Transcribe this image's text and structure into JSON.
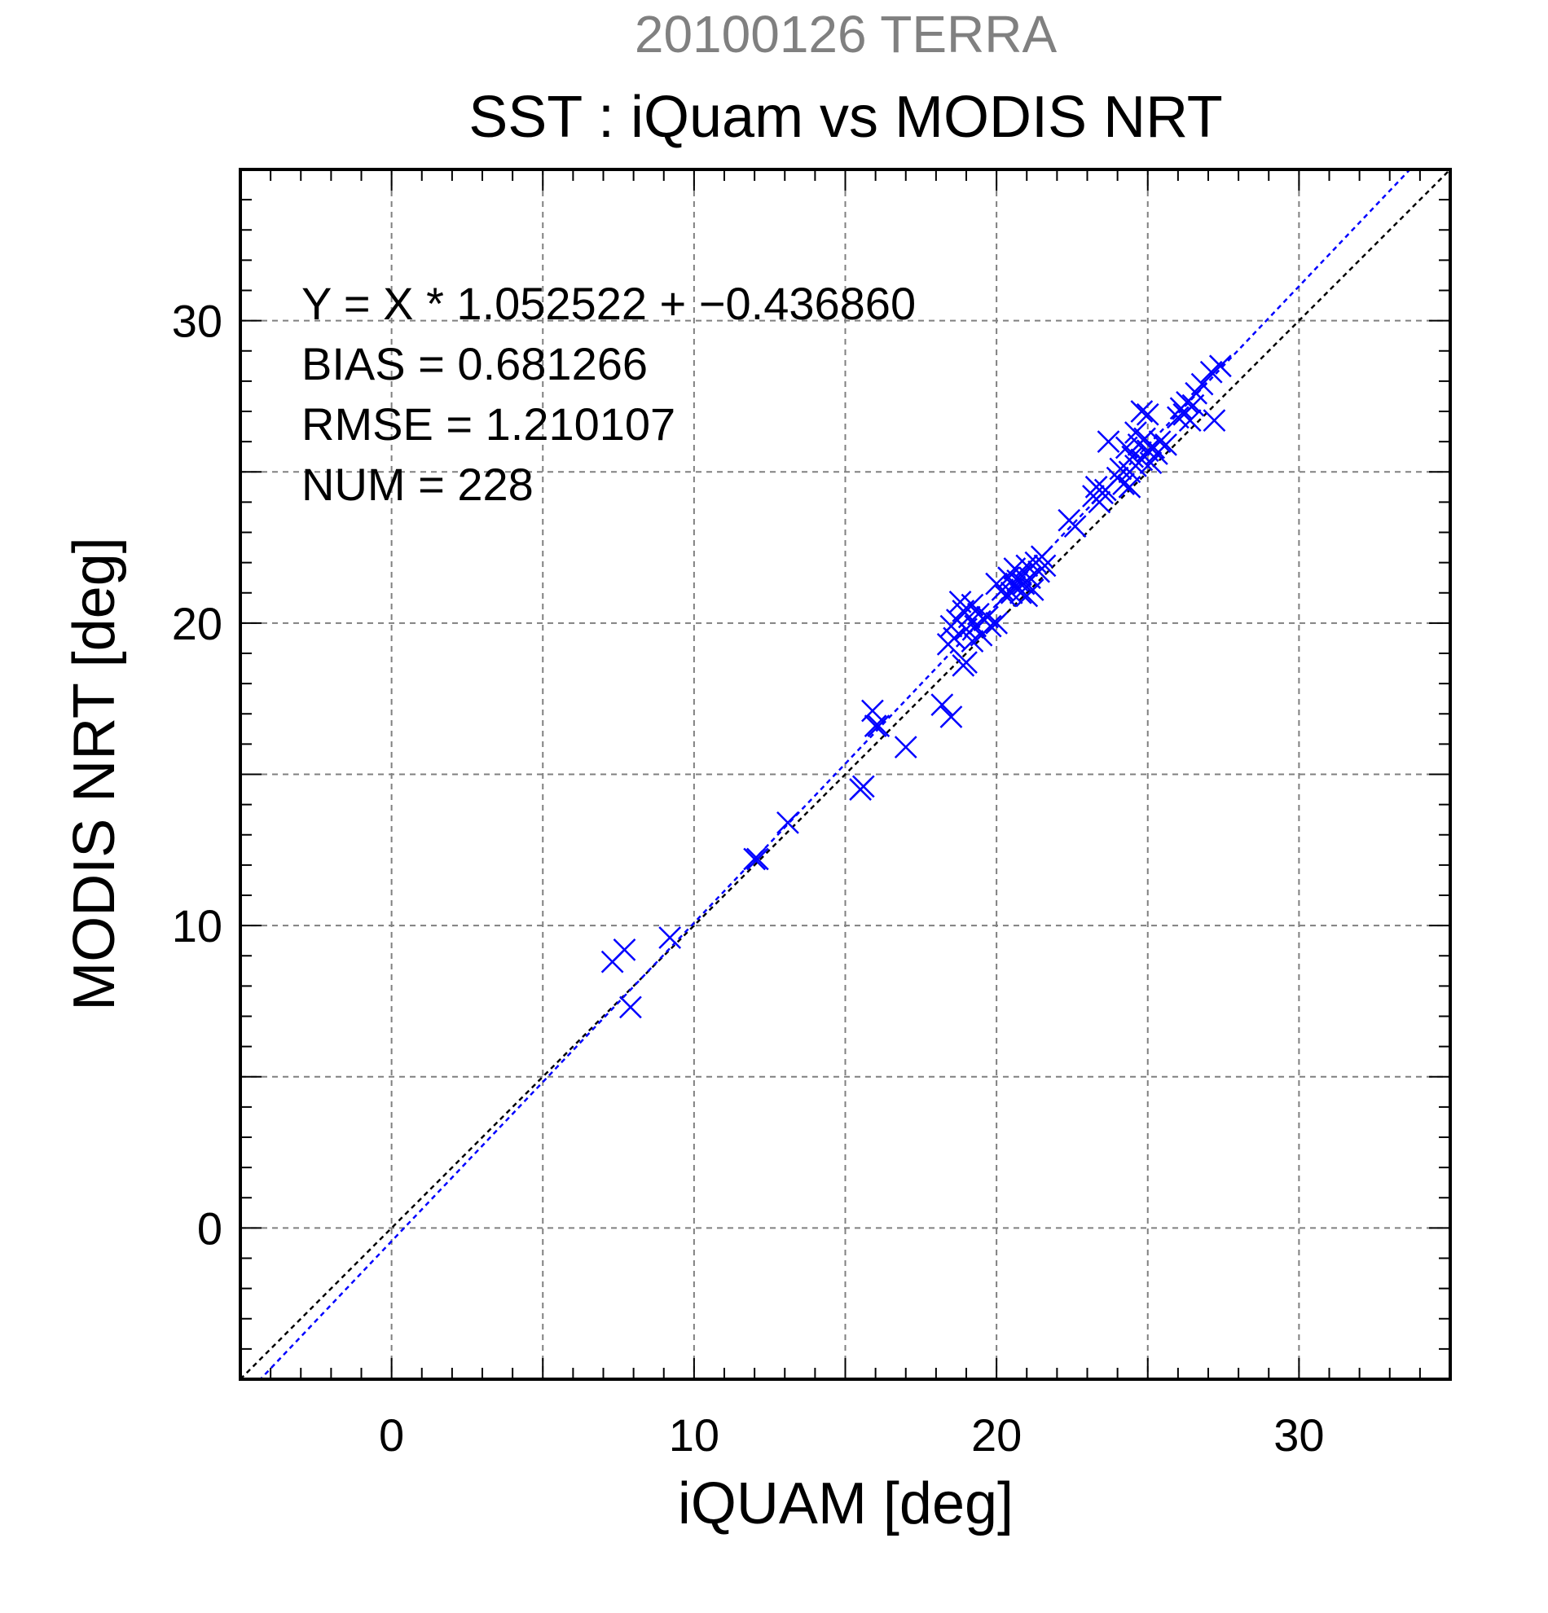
{
  "chart_data": {
    "type": "scatter",
    "title_top": "20100126 TERRA",
    "title": "SST : iQuam vs MODIS NRT",
    "xlabel": "iQUAM [deg]",
    "ylabel": "MODIS NRT [deg]",
    "xlim": [
      -5,
      35
    ],
    "ylim": [
      -5,
      35
    ],
    "x_ticks": [
      0,
      10,
      20,
      30
    ],
    "y_ticks": [
      0,
      10,
      20,
      30
    ],
    "grid": true,
    "stats": [
      "Y = X * 1.052522 + −0.436860",
      "BIAS = 0.681266",
      "RMSE = 1.210107",
      "NUM = 228"
    ],
    "fit": {
      "slope": 1.052522,
      "intercept": -0.43686
    },
    "colors": {
      "points": "#0000ff",
      "fit_line": "#0000ff",
      "identity_line": "#000000",
      "grid": "#808080",
      "title_top": "#808080"
    },
    "points": [
      [
        7.3,
        8.8
      ],
      [
        7.7,
        9.2
      ],
      [
        7.9,
        7.3
      ],
      [
        9.2,
        9.6
      ],
      [
        12.0,
        12.2
      ],
      [
        12.1,
        12.2
      ],
      [
        13.1,
        13.4
      ],
      [
        15.5,
        14.5
      ],
      [
        15.6,
        14.6
      ],
      [
        15.9,
        17.1
      ],
      [
        16.0,
        16.6
      ],
      [
        16.1,
        16.6
      ],
      [
        17.0,
        15.9
      ],
      [
        18.2,
        17.3
      ],
      [
        18.5,
        16.9
      ],
      [
        18.4,
        19.3
      ],
      [
        18.5,
        19.9
      ],
      [
        18.6,
        19.5
      ],
      [
        18.7,
        20.1
      ],
      [
        18.8,
        20.7
      ],
      [
        18.9,
        20.4
      ],
      [
        18.9,
        18.6
      ],
      [
        19.0,
        18.7
      ],
      [
        19.0,
        19.8
      ],
      [
        19.1,
        20.2
      ],
      [
        19.2,
        19.4
      ],
      [
        19.2,
        20.6
      ],
      [
        19.3,
        19.9
      ],
      [
        19.4,
        20.3
      ],
      [
        19.5,
        19.6
      ],
      [
        19.6,
        20.1
      ],
      [
        19.7,
        20.2
      ],
      [
        19.8,
        19.9
      ],
      [
        20.0,
        20.0
      ],
      [
        20.0,
        21.3
      ],
      [
        20.2,
        21.1
      ],
      [
        20.3,
        20.9
      ],
      [
        20.4,
        21.5
      ],
      [
        20.5,
        21.0
      ],
      [
        20.6,
        21.2
      ],
      [
        20.6,
        21.8
      ],
      [
        20.7,
        21.4
      ],
      [
        20.8,
        21.0
      ],
      [
        20.8,
        21.6
      ],
      [
        20.9,
        21.3
      ],
      [
        21.0,
        20.9
      ],
      [
        21.0,
        21.9
      ],
      [
        21.1,
        21.5
      ],
      [
        21.2,
        21.1
      ],
      [
        21.3,
        22.0
      ],
      [
        21.4,
        21.7
      ],
      [
        21.5,
        22.2
      ],
      [
        21.6,
        21.9
      ],
      [
        22.4,
        23.4
      ],
      [
        22.6,
        23.2
      ],
      [
        23.2,
        24.2
      ],
      [
        23.3,
        24.5
      ],
      [
        23.4,
        24.0
      ],
      [
        23.5,
        24.3
      ],
      [
        23.6,
        24.4
      ],
      [
        23.7,
        26.0
      ],
      [
        24.0,
        24.8
      ],
      [
        24.1,
        25.1
      ],
      [
        24.2,
        24.6
      ],
      [
        24.3,
        25.8
      ],
      [
        24.4,
        25.0
      ],
      [
        24.4,
        24.5
      ],
      [
        24.5,
        25.5
      ],
      [
        24.6,
        25.2
      ],
      [
        24.6,
        26.3
      ],
      [
        24.7,
        25.9
      ],
      [
        24.8,
        25.4
      ],
      [
        24.8,
        27.0
      ],
      [
        24.9,
        26.1
      ],
      [
        25.0,
        25.7
      ],
      [
        25.0,
        26.9
      ],
      [
        25.1,
        25.3
      ],
      [
        25.2,
        25.8
      ],
      [
        25.3,
        25.6
      ],
      [
        25.4,
        26.0
      ],
      [
        25.6,
        25.9
      ],
      [
        26.0,
        26.8
      ],
      [
        26.1,
        27.1
      ],
      [
        26.2,
        26.9
      ],
      [
        26.3,
        27.3
      ],
      [
        26.4,
        26.7
      ],
      [
        26.5,
        27.2
      ],
      [
        26.6,
        27.6
      ],
      [
        26.8,
        27.9
      ],
      [
        27.1,
        28.3
      ],
      [
        27.2,
        26.7
      ],
      [
        27.4,
        28.5
      ]
    ]
  }
}
